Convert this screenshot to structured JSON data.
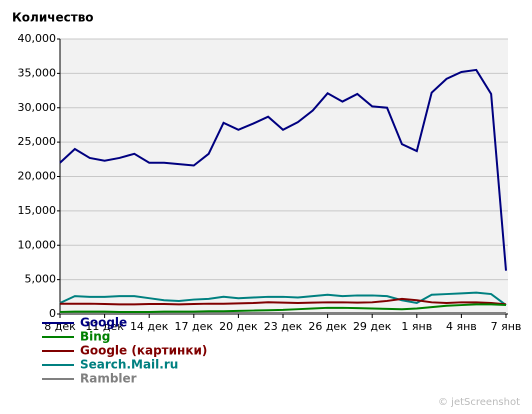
{
  "chart_data": {
    "type": "line",
    "title": "Количество",
    "categories": [
      "8 дек",
      null,
      null,
      "11 дек",
      null,
      null,
      "14 дек",
      null,
      null,
      "17 дек",
      null,
      null,
      "20 дек",
      null,
      null,
      "23 дек",
      null,
      null,
      "26 дек",
      null,
      null,
      "29 дек",
      null,
      null,
      "1 янв",
      null,
      null,
      "4 янв",
      null,
      null,
      "7 янв"
    ],
    "ylim": [
      0,
      40000
    ],
    "yticks": [
      0,
      {
        "value": 5000,
        "label": "5,000"
      },
      {
        "value": 10000,
        "label": "10,000"
      },
      {
        "value": 15000,
        "label": "15,000"
      },
      {
        "value": 20000,
        "label": "20,000"
      },
      {
        "value": 25000,
        "label": "25,000"
      },
      {
        "value": 30000,
        "label": "30,000"
      },
      {
        "value": 35000,
        "label": "35,000"
      },
      {
        "value": 40000,
        "label": "40,000"
      }
    ],
    "grid": true,
    "series": [
      {
        "name": "Google",
        "color": "#000080",
        "values": [
          22000,
          24000,
          22700,
          22300,
          22700,
          23300,
          22000,
          22000,
          21800,
          21600,
          23300,
          27800,
          26800,
          27700,
          28700,
          26800,
          27900,
          29600,
          32100,
          30900,
          32000,
          30200,
          30000,
          24700,
          23700,
          32200,
          34200,
          35200,
          35500,
          32000,
          6300
        ]
      },
      {
        "name": "Bing",
        "color": "#008000",
        "values": [
          300,
          350,
          350,
          350,
          300,
          300,
          300,
          350,
          350,
          350,
          400,
          400,
          450,
          500,
          550,
          600,
          700,
          800,
          900,
          900,
          850,
          800,
          750,
          700,
          800,
          1000,
          1200,
          1300,
          1400,
          1400,
          1300
        ]
      },
      {
        "name": "Google (картинки)",
        "color": "#800000",
        "values": [
          1500,
          1500,
          1500,
          1450,
          1400,
          1400,
          1450,
          1450,
          1400,
          1450,
          1500,
          1500,
          1550,
          1600,
          1700,
          1650,
          1600,
          1650,
          1700,
          1700,
          1650,
          1700,
          1900,
          2200,
          2000,
          1700,
          1600,
          1700,
          1700,
          1600,
          1400
        ]
      },
      {
        "name": "Search.Mail.ru",
        "color": "#008080",
        "values": [
          1600,
          2600,
          2500,
          2500,
          2600,
          2600,
          2300,
          2000,
          1900,
          2100,
          2200,
          2500,
          2300,
          2400,
          2500,
          2500,
          2400,
          2600,
          2800,
          2600,
          2700,
          2700,
          2600,
          2000,
          1600,
          2800,
          2900,
          3000,
          3100,
          2900,
          1300
        ]
      },
      {
        "name": "Rambler",
        "color": "#808080",
        "values": [
          150,
          150,
          150,
          150,
          150,
          150,
          150,
          150,
          150,
          150,
          150,
          150,
          150,
          150,
          150,
          150,
          150,
          150,
          150,
          150,
          150,
          150,
          150,
          150,
          150,
          150,
          150,
          150,
          150,
          150,
          150
        ]
      }
    ],
    "watermark": "© jetScreenshot"
  }
}
